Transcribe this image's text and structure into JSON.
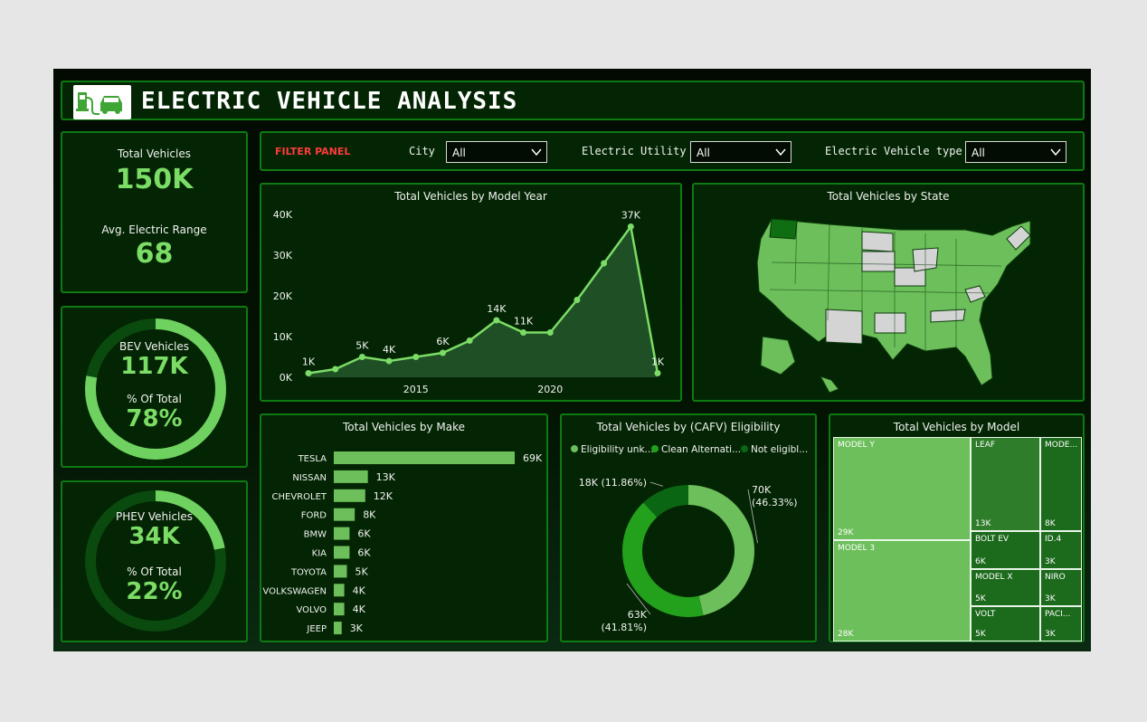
{
  "header": {
    "title": "ELECTRIC VEHICLE ANALYSIS",
    "logo_icon": "ev-charging-car-icon"
  },
  "kpis": {
    "total_label": "Total Vehicles",
    "total_value": "150K",
    "range_label": "Avg. Electric Range",
    "range_value": "68",
    "bev_label": "BEV Vehicles",
    "bev_value": "117K",
    "bev_pct_label": "% Of Total",
    "bev_pct": "78%",
    "bev_fraction": 0.78,
    "phev_label": "PHEV Vehicles",
    "phev_value": "34K",
    "phev_pct_label": "% Of Total",
    "phev_pct": "22%",
    "phev_fraction": 0.22
  },
  "filters": {
    "panel_label": "FILTER PANEL",
    "city_label": "City",
    "city_value": "All",
    "utility_label": "Electric Utility",
    "utility_value": "All",
    "type_label": "Electric Vehicle type",
    "type_value": "All"
  },
  "colors": {
    "accent": "#7bdc66",
    "panel": "#032503",
    "border": "#0e7a12",
    "filter_label": "#ff3b3b"
  },
  "chart_data": [
    {
      "type": "area",
      "title": "Total Vehicles by Model Year",
      "x": [
        2011,
        2012,
        2013,
        2014,
        2015,
        2016,
        2017,
        2018,
        2019,
        2020,
        2021,
        2022,
        2023,
        2024
      ],
      "values": [
        1000,
        2000,
        5000,
        4000,
        5000,
        6000,
        9000,
        14000,
        11000,
        11000,
        19000,
        28000,
        37000,
        1000
      ],
      "point_labels": [
        "1K",
        "",
        "5K",
        "4K",
        "",
        "6K",
        "",
        "14K",
        "11K",
        "",
        "",
        "",
        "37K",
        "1K"
      ],
      "x_ticks": [
        "2015",
        "2020"
      ],
      "y_ticks": [
        "0K",
        "10K",
        "20K",
        "30K",
        "40K"
      ],
      "ylim": [
        0,
        40000
      ]
    },
    {
      "type": "map",
      "title": "Total Vehicles by State"
    },
    {
      "type": "bar",
      "title": "Total Vehicles by Make",
      "categories": [
        "TESLA",
        "NISSAN",
        "CHEVROLET",
        "FORD",
        "BMW",
        "KIA",
        "TOYOTA",
        "VOLKSWAGEN",
        "VOLVO",
        "JEEP"
      ],
      "values": [
        69,
        13,
        12,
        8,
        6,
        6,
        5,
        4,
        4,
        3
      ],
      "value_labels": [
        "69K",
        "13K",
        "12K",
        "8K",
        "6K",
        "6K",
        "5K",
        "4K",
        "4K",
        "3K"
      ]
    },
    {
      "type": "pie",
      "title": "Total Vehicles by (CAFV) Eligibility",
      "legend": [
        "Eligibility unk...",
        "Clean Alternati...",
        "Not eligibl..."
      ],
      "legend_colors": [
        "#6cbf5a",
        "#23a01c",
        "#0b6614"
      ],
      "values": [
        70,
        63,
        18
      ],
      "labels": [
        "70K",
        "63K",
        "18K (11.86%)"
      ],
      "pct_labels": [
        "(46.33%)",
        "(41.81%)",
        ""
      ],
      "colors": [
        "#6cbf5a",
        "#23a01c",
        "#0b6614"
      ]
    },
    {
      "type": "table",
      "title": "Total Vehicles by Model",
      "items": [
        {
          "name": "MODEL Y",
          "value": "29K"
        },
        {
          "name": "MODEL 3",
          "value": "28K"
        },
        {
          "name": "LEAF",
          "value": "13K"
        },
        {
          "name": "MODE...",
          "value": "8K"
        },
        {
          "name": "BOLT EV",
          "value": "6K"
        },
        {
          "name": "ID.4",
          "value": "3K"
        },
        {
          "name": "MODEL X",
          "value": "5K"
        },
        {
          "name": "NIRO",
          "value": "3K"
        },
        {
          "name": "VOLT",
          "value": "5K"
        },
        {
          "name": "PACI...",
          "value": "3K"
        }
      ]
    }
  ]
}
